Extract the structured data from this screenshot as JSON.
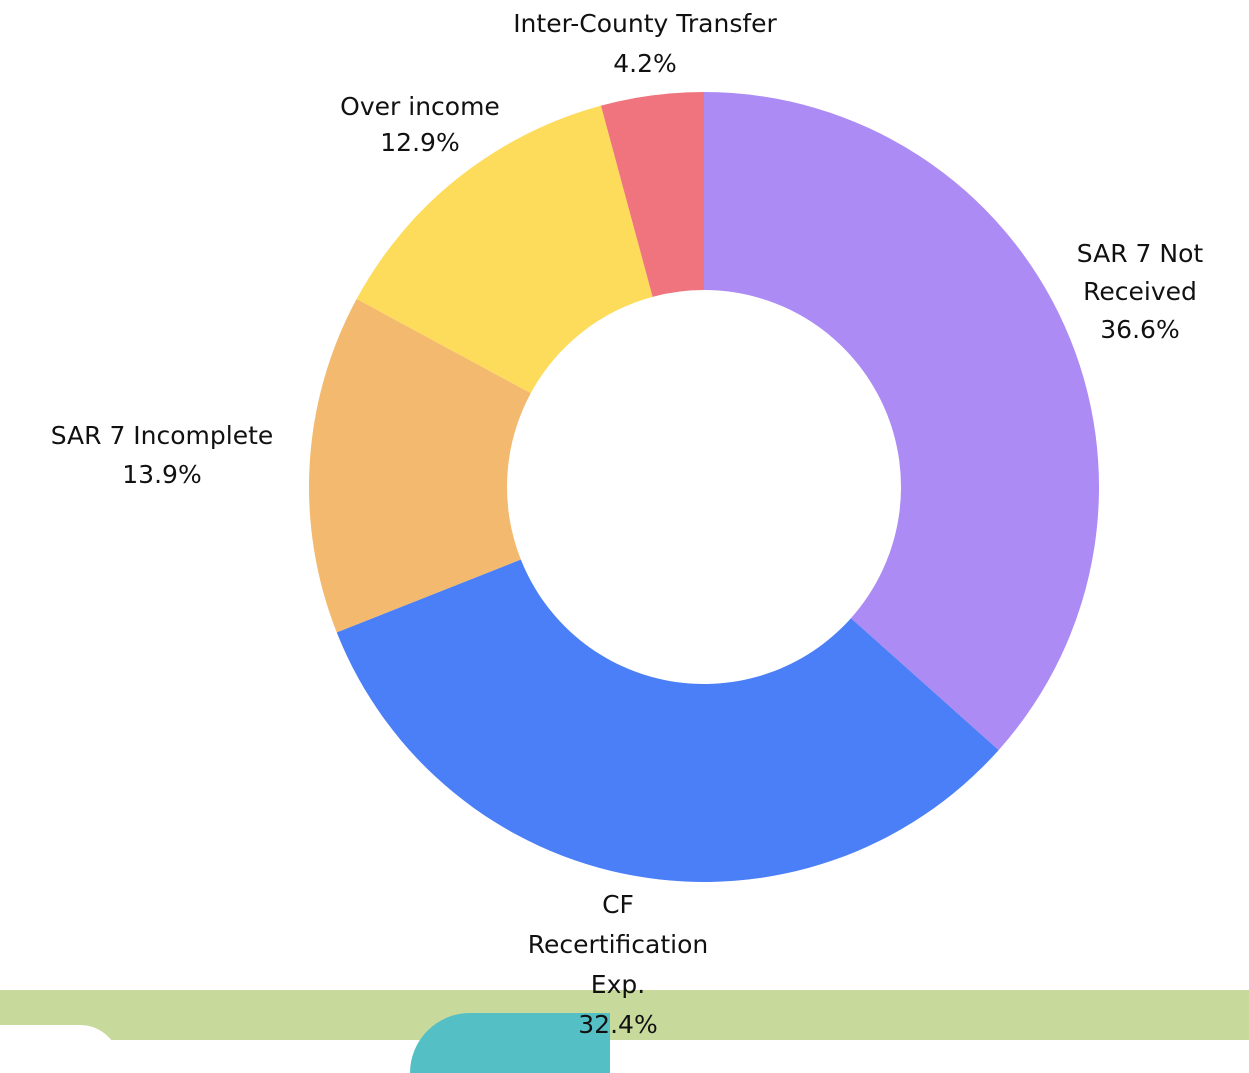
{
  "chart_data": {
    "type": "donut",
    "categories": [
      "SAR 7 Not Received",
      "CF Recertification Exp.",
      "SAR 7 Incomplete",
      "Over income",
      "Inter-County Transfer"
    ],
    "values": [
      36.6,
      32.4,
      13.9,
      12.9,
      4.2
    ],
    "value_labels": [
      "36.6%",
      "32.4%",
      "13.9%",
      "12.9%",
      "4.2%"
    ],
    "colors": [
      "#ad8bf5",
      "#4b7ff7",
      "#f3b96e",
      "#fedc5b",
      "#f0747d"
    ]
  }
}
